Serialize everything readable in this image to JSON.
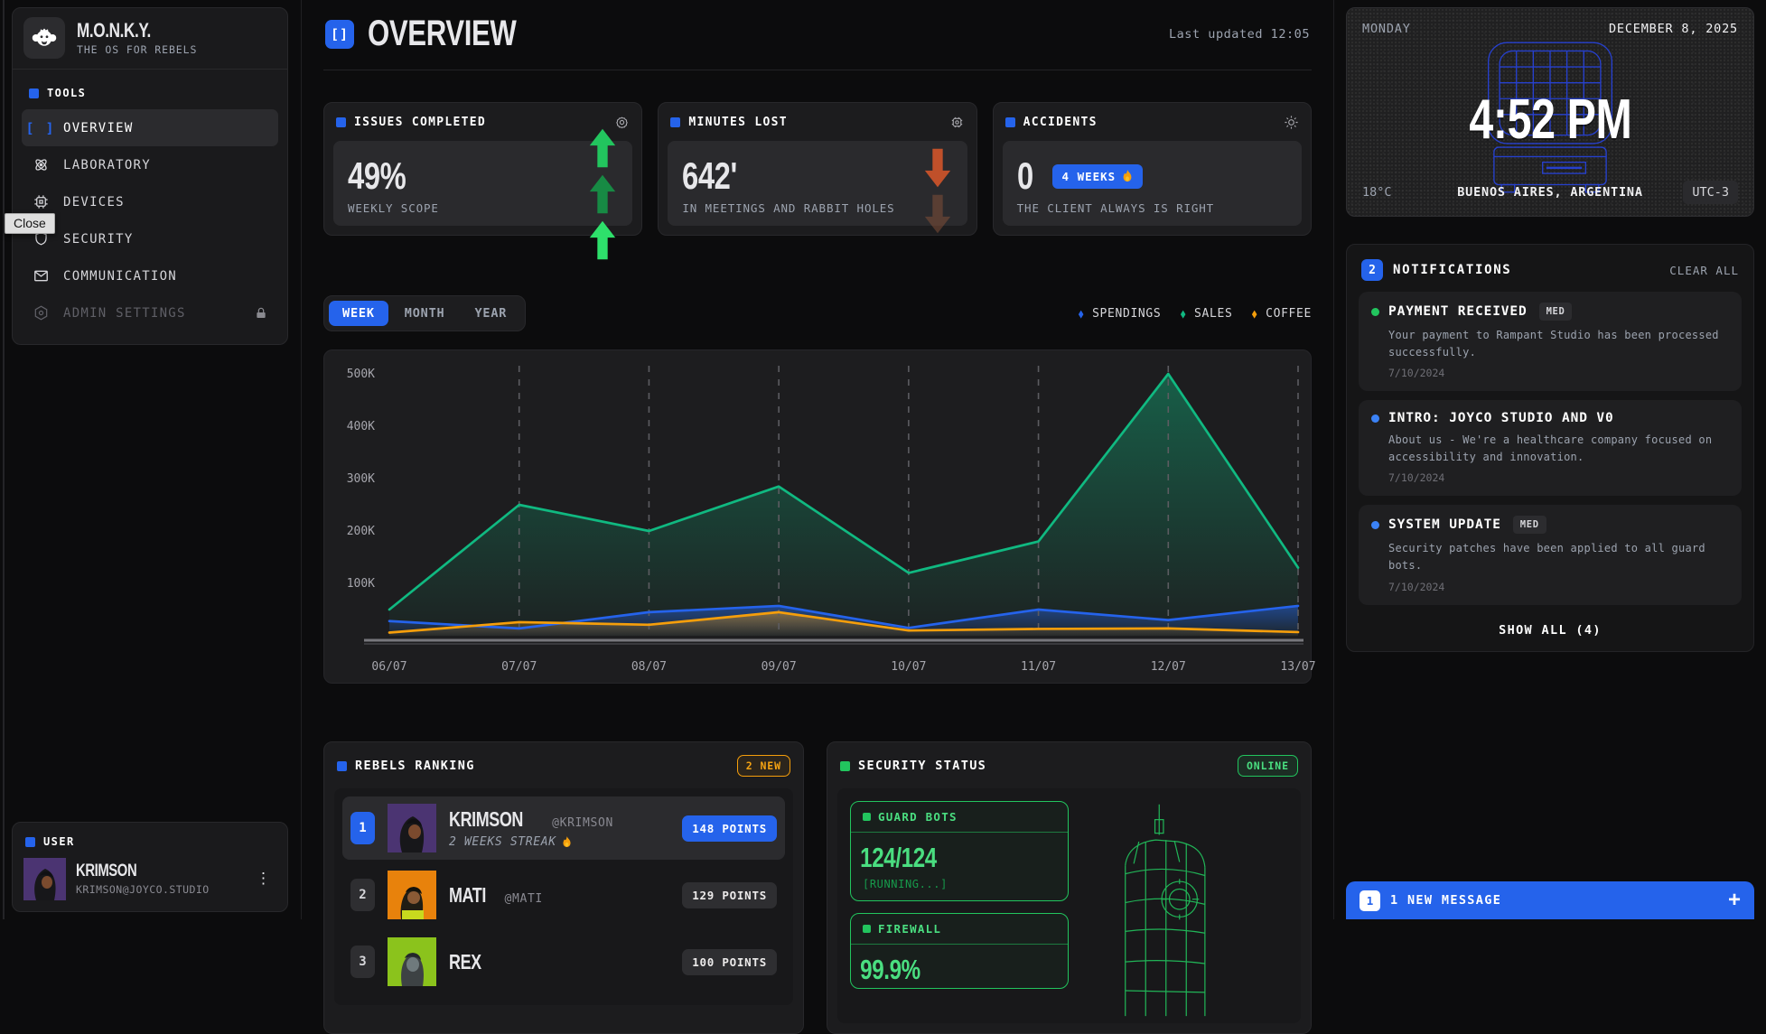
{
  "app": {
    "name": "M.O.N.K.Y.",
    "tagline": "THE OS FOR REBELS"
  },
  "tooltip": {
    "label": "Close"
  },
  "sidebar": {
    "tools_label": "TOOLS",
    "items": [
      {
        "label": "OVERVIEW"
      },
      {
        "label": "LABORATORY"
      },
      {
        "label": "DEVICES"
      },
      {
        "label": "SECURITY"
      },
      {
        "label": "COMMUNICATION"
      },
      {
        "label": "ADMIN SETTINGS"
      }
    ],
    "user": {
      "section_label": "USER",
      "name": "KRIMSON",
      "email": "KRIMSON@JOYCO.STUDIO"
    }
  },
  "header": {
    "title": "OVERVIEW",
    "icon_glyph": "[]",
    "last_updated": "Last updated 12:05"
  },
  "stats": [
    {
      "title": "ISSUES COMPLETED",
      "value": "49%",
      "label": "WEEKLY SCOPE",
      "trend": "up"
    },
    {
      "title": "MINUTES LOST",
      "value": "642'",
      "label": "IN MEETINGS AND RABBIT HOLES",
      "trend": "down"
    },
    {
      "title": "ACCIDENTS",
      "value": "0",
      "streak_badge": "4 WEEKS",
      "label": "THE CLIENT ALWAYS IS RIGHT",
      "trend": "none"
    }
  ],
  "chart": {
    "tabs": [
      "WEEK",
      "MONTH",
      "YEAR"
    ],
    "active_tab": "WEEK"
  },
  "chart_data": {
    "type": "area",
    "categories": [
      "06/07",
      "07/07",
      "08/07",
      "09/07",
      "10/07",
      "11/07",
      "12/07",
      "13/07"
    ],
    "series": [
      {
        "name": "SPENDINGS",
        "color": "#2563eb",
        "values": [
          28,
          14,
          45,
          57,
          15,
          50,
          30,
          57
        ]
      },
      {
        "name": "SALES",
        "color": "#10b981",
        "values": [
          50,
          250,
          200,
          285,
          120,
          180,
          500,
          130
        ]
      },
      {
        "name": "COFFEE",
        "color": "#f59e0b",
        "values": [
          6,
          26,
          21,
          45,
          10,
          13,
          14,
          7
        ]
      }
    ],
    "unit": "K",
    "ylim": [
      0,
      500
    ],
    "ytick_values": [
      100,
      200,
      300,
      400,
      500
    ],
    "ytick_labels": [
      "100K",
      "200K",
      "300K",
      "400K",
      "500K"
    ],
    "grid": "vertical-dashed",
    "legend_position": "top-right"
  },
  "ranking": {
    "title": "REBELS RANKING",
    "new_badge": "2 NEW",
    "rows": [
      {
        "rank": "1",
        "name": "KRIMSON",
        "handle": "@KRIMSON",
        "streak": "2 WEEKS STREAK",
        "points": "148 POINTS"
      },
      {
        "rank": "2",
        "name": "MATI",
        "handle": "@MATI",
        "points": "129 POINTS"
      },
      {
        "rank": "3",
        "name": "REX",
        "points": "100 POINTS"
      }
    ]
  },
  "security": {
    "title": "SECURITY STATUS",
    "status": "ONLINE",
    "panels": [
      {
        "label": "GUARD BOTS",
        "value": "124/124",
        "sub": "[RUNNING...]"
      },
      {
        "label": "FIREWALL",
        "value": "99.9%"
      }
    ]
  },
  "clock": {
    "day": "MONDAY",
    "date": "DECEMBER 8, 2025",
    "time": "4:52 PM",
    "temperature": "18°C",
    "location": "BUENOS AIRES, ARGENTINA",
    "timezone": "UTC-3"
  },
  "notifications": {
    "count": "2",
    "title": "NOTIFICATIONS",
    "clear_label": "CLEAR ALL",
    "show_all": "SHOW ALL (4)",
    "items": [
      {
        "title": "PAYMENT RECEIVED",
        "priority": "MED",
        "dot": "#22c55e",
        "body": "Your payment to Rampant Studio has been processed successfully.",
        "date": "7/10/2024"
      },
      {
        "title": "INTRO: JOYCO STUDIO AND V0",
        "dot": "#3b82f6",
        "body": "About us - We're a healthcare company focused on accessibility and innovation.",
        "date": "7/10/2024"
      },
      {
        "title": "SYSTEM UPDATE",
        "priority": "MED",
        "dot": "#3b82f6",
        "body": "Security patches have been applied to all guard bots.",
        "date": "7/10/2024"
      }
    ]
  },
  "message_bar": {
    "count": "1",
    "label": "1 NEW MESSAGE"
  },
  "colors": {
    "accent_blue": "#2563eb",
    "chart_green": "#10b981",
    "status_green": "#22c55e",
    "orange": "#f59e0b",
    "down_red": "#c0502a",
    "background": "#0c0c0d",
    "panel": "#1c1c1e"
  }
}
